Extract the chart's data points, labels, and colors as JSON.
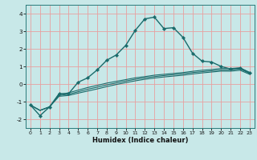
{
  "title": "",
  "xlabel": "Humidex (Indice chaleur)",
  "xlim": [
    -0.5,
    23.5
  ],
  "ylim": [
    -2.5,
    4.5
  ],
  "xticks": [
    0,
    1,
    2,
    3,
    4,
    5,
    6,
    7,
    8,
    9,
    10,
    11,
    12,
    13,
    14,
    15,
    16,
    17,
    18,
    19,
    20,
    21,
    22,
    23
  ],
  "yticks": [
    -2,
    -1,
    0,
    1,
    2,
    3,
    4
  ],
  "bg_color": "#c8e8e8",
  "line_color": "#1a6b6b",
  "grid_color": "#e8a0a0",
  "line1_x": [
    0,
    1,
    2,
    3,
    4,
    5,
    6,
    7,
    8,
    9,
    10,
    11,
    12,
    13,
    14,
    15,
    16,
    17,
    18,
    19,
    20,
    21,
    22,
    23
  ],
  "line1_y": [
    -1.2,
    -1.8,
    -1.3,
    -0.55,
    -0.55,
    0.1,
    0.35,
    0.8,
    1.35,
    1.65,
    2.2,
    3.05,
    3.7,
    3.8,
    3.15,
    3.2,
    2.65,
    1.75,
    1.3,
    1.25,
    1.0,
    0.85,
    0.9,
    0.65
  ],
  "line2_x": [
    0,
    1,
    2,
    3,
    4,
    5,
    6,
    7,
    8,
    9,
    10,
    11,
    12,
    13,
    14,
    15,
    16,
    17,
    18,
    19,
    20,
    21,
    22,
    23
  ],
  "line2_y": [
    -1.2,
    -1.5,
    -1.3,
    -0.6,
    -0.5,
    -0.35,
    -0.2,
    -0.08,
    0.05,
    0.15,
    0.25,
    0.35,
    0.42,
    0.5,
    0.55,
    0.6,
    0.65,
    0.72,
    0.78,
    0.82,
    0.88,
    0.88,
    0.92,
    0.65
  ],
  "line3_x": [
    0,
    1,
    2,
    3,
    4,
    5,
    6,
    7,
    8,
    9,
    10,
    11,
    12,
    13,
    14,
    15,
    16,
    17,
    18,
    19,
    20,
    21,
    22,
    23
  ],
  "line3_y": [
    -1.2,
    -1.5,
    -1.3,
    -0.65,
    -0.58,
    -0.44,
    -0.3,
    -0.18,
    -0.05,
    0.06,
    0.17,
    0.27,
    0.35,
    0.42,
    0.48,
    0.53,
    0.58,
    0.65,
    0.7,
    0.75,
    0.8,
    0.8,
    0.85,
    0.6
  ],
  "line4_x": [
    0,
    1,
    2,
    3,
    4,
    5,
    6,
    7,
    8,
    9,
    10,
    11,
    12,
    13,
    14,
    15,
    16,
    17,
    18,
    19,
    20,
    21,
    22,
    23
  ],
  "line4_y": [
    -1.2,
    -1.5,
    -1.3,
    -0.7,
    -0.65,
    -0.52,
    -0.4,
    -0.28,
    -0.15,
    -0.03,
    0.08,
    0.18,
    0.27,
    0.34,
    0.4,
    0.45,
    0.5,
    0.57,
    0.63,
    0.68,
    0.73,
    0.73,
    0.78,
    0.55
  ]
}
